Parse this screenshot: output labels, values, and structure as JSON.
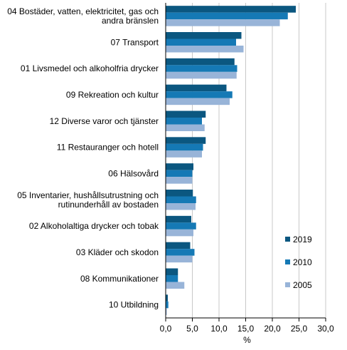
{
  "chart_data": {
    "type": "bar",
    "orientation": "horizontal",
    "categories": [
      "04 Bostäder, vatten, elektricitet, gas och\nandra bränslen",
      "07 Transport",
      "01 Livsmedel och alkoholfria drycker",
      "09 Rekreation och kultur",
      "12 Diverse varor och tjänster",
      "11 Restauranger och hotell",
      "06 Hälsovård",
      "05 Inventarier, hushållsutrustning och\nrutinunderhåll av bostaden",
      "02 Alkoholaltiga drycker och tobak",
      "03 Kläder och skodon",
      "08 Kommunikationer",
      "10 Utbildning"
    ],
    "series": [
      {
        "name": "2019",
        "color": "#0b5780",
        "values": [
          24.4,
          14.2,
          12.9,
          11.4,
          7.5,
          7.5,
          5.2,
          5.1,
          4.8,
          4.6,
          2.3,
          0.4
        ]
      },
      {
        "name": "2010",
        "color": "#1579b5",
        "values": [
          22.9,
          13.2,
          13.4,
          12.5,
          6.8,
          7.0,
          5.0,
          5.7,
          5.7,
          5.4,
          2.3,
          0.5
        ]
      },
      {
        "name": "2005",
        "color": "#98b4d8",
        "values": [
          21.4,
          14.6,
          13.3,
          12.0,
          7.3,
          6.8,
          5.0,
          5.6,
          5.2,
          5.0,
          3.5,
          0.2
        ]
      }
    ],
    "xticks": [
      "0,0",
      "5,0",
      "10,0",
      "15,0",
      "20,0",
      "25,0",
      "30,0"
    ],
    "xlabel": "%",
    "xlim": [
      0,
      30
    ],
    "grid": true,
    "legend_position": "right"
  }
}
